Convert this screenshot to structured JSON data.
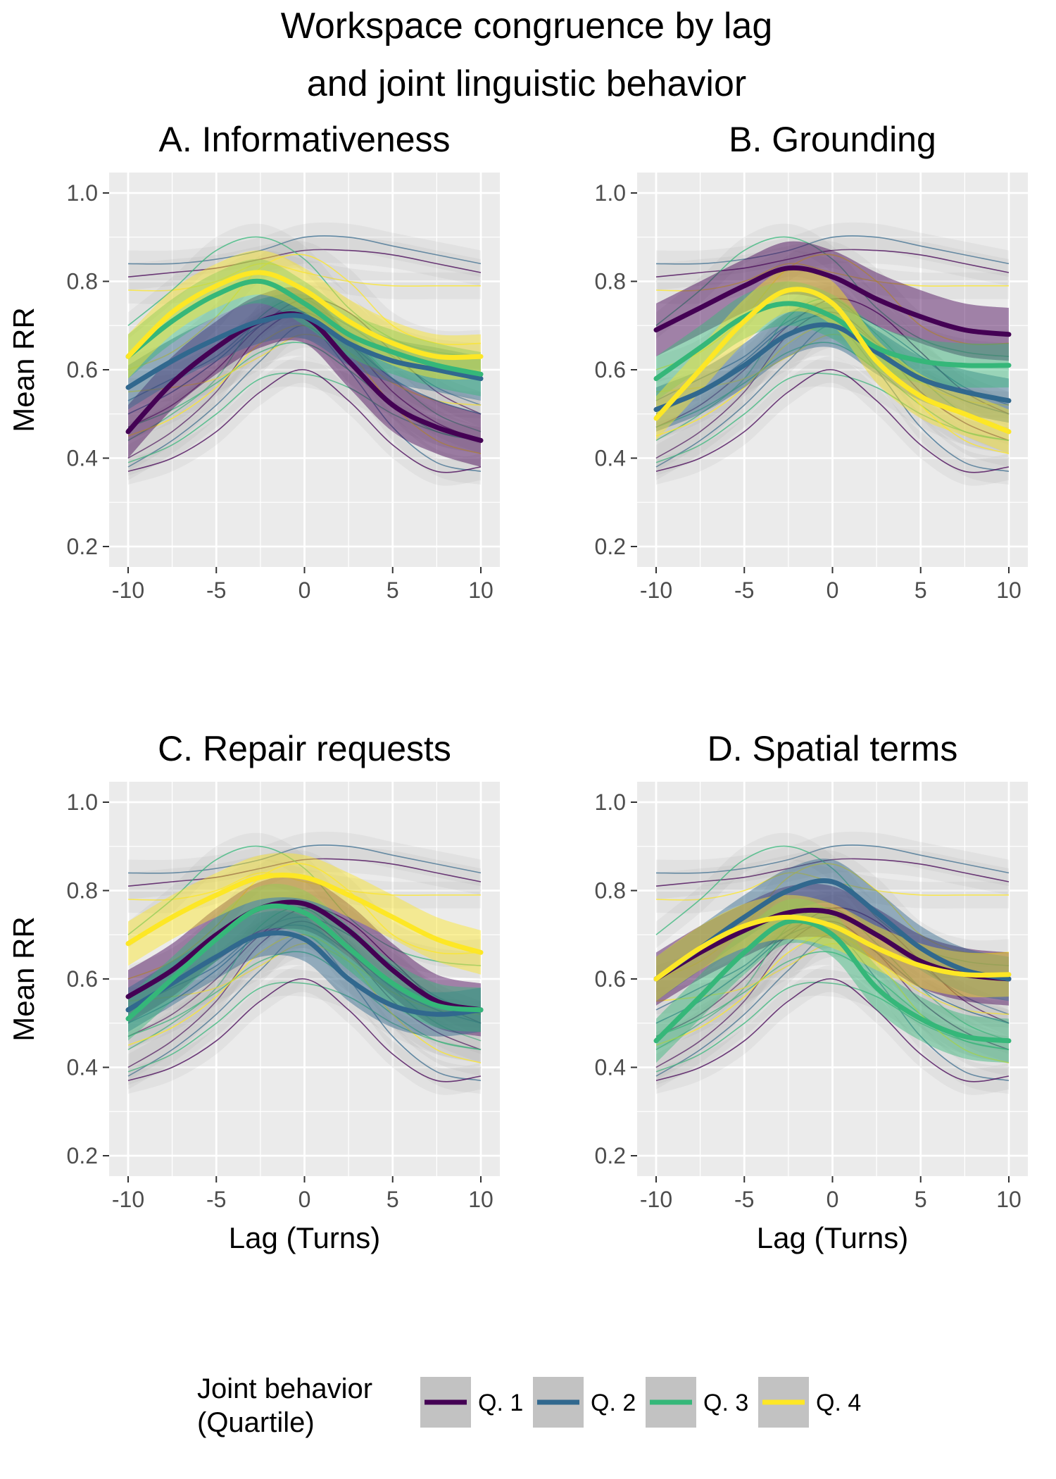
{
  "title_line1": "Workspace congruence by lag",
  "title_line2": "and joint linguistic behavior",
  "chart_data": {
    "type": "line",
    "x_range": [
      -10,
      10
    ],
    "y_range": [
      0.2,
      1.0
    ],
    "x_ticks": [
      -10,
      -5,
      0,
      5,
      10
    ],
    "y_ticks": [
      0.2,
      0.4,
      0.6,
      0.8,
      1.0
    ],
    "x_tick_labels": [
      "-10",
      "-5",
      "0",
      "5",
      "10"
    ],
    "y_tick_labels": [
      "0.2",
      "0.4",
      "0.6",
      "0.8",
      "1.0"
    ],
    "xlabel": "Lag (Turns)",
    "ylabel": "Mean RR",
    "x": [
      -10,
      -7.5,
      -5,
      -2.5,
      0,
      2.5,
      5,
      7.5,
      10
    ],
    "legend": {
      "title_line1": "Joint behavior",
      "title_line2": "(Quartile)",
      "position": "bottom",
      "entries": [
        {
          "label": "Q. 1",
          "color": "#440154"
        },
        {
          "label": "Q. 2",
          "color": "#31688e"
        },
        {
          "label": "Q. 3",
          "color": "#35b779"
        },
        {
          "label": "Q. 4",
          "color": "#fde725"
        }
      ]
    },
    "background_lines": [
      {
        "values": [
          0.84,
          0.84,
          0.85,
          0.87,
          0.9,
          0.9,
          0.88,
          0.86,
          0.84
        ],
        "color": "#31688e"
      },
      {
        "values": [
          0.81,
          0.82,
          0.83,
          0.85,
          0.87,
          0.87,
          0.86,
          0.84,
          0.82
        ],
        "color": "#440154"
      },
      {
        "values": [
          0.78,
          0.78,
          0.8,
          0.84,
          0.82,
          0.8,
          0.79,
          0.79,
          0.79
        ],
        "color": "#fde725"
      },
      {
        "values": [
          0.7,
          0.78,
          0.87,
          0.9,
          0.85,
          0.74,
          0.67,
          0.64,
          0.63
        ],
        "color": "#35b779"
      },
      {
        "values": [
          0.6,
          0.64,
          0.72,
          0.83,
          0.86,
          0.8,
          0.7,
          0.66,
          0.66
        ],
        "color": "#fde725"
      },
      {
        "values": [
          0.53,
          0.58,
          0.63,
          0.71,
          0.74,
          0.7,
          0.63,
          0.56,
          0.52
        ],
        "color": "#31688e"
      },
      {
        "values": [
          0.47,
          0.52,
          0.6,
          0.7,
          0.76,
          0.73,
          0.64,
          0.55,
          0.5
        ],
        "color": "#440154"
      },
      {
        "values": [
          0.44,
          0.5,
          0.58,
          0.72,
          0.76,
          0.68,
          0.58,
          0.5,
          0.46
        ],
        "color": "#35b779"
      },
      {
        "values": [
          0.4,
          0.46,
          0.55,
          0.68,
          0.73,
          0.66,
          0.55,
          0.48,
          0.44
        ],
        "color": "#440154"
      },
      {
        "values": [
          0.38,
          0.44,
          0.52,
          0.62,
          0.7,
          0.6,
          0.47,
          0.39,
          0.37
        ],
        "color": "#31688e"
      },
      {
        "values": [
          0.39,
          0.43,
          0.5,
          0.58,
          0.59,
          0.56,
          0.5,
          0.46,
          0.44
        ],
        "color": "#35b779"
      },
      {
        "values": [
          0.37,
          0.4,
          0.46,
          0.55,
          0.6,
          0.53,
          0.43,
          0.37,
          0.38
        ],
        "color": "#440154"
      },
      {
        "values": [
          0.55,
          0.56,
          0.58,
          0.63,
          0.68,
          0.64,
          0.57,
          0.53,
          0.52
        ],
        "color": "#fde725"
      },
      {
        "values": [
          0.47,
          0.51,
          0.57,
          0.64,
          0.66,
          0.6,
          0.52,
          0.46,
          0.44
        ],
        "color": "#35b779"
      },
      {
        "values": [
          0.5,
          0.55,
          0.62,
          0.7,
          0.72,
          0.66,
          0.58,
          0.53,
          0.5
        ],
        "color": "#31688e"
      },
      {
        "values": [
          0.45,
          0.49,
          0.56,
          0.66,
          0.7,
          0.64,
          0.52,
          0.44,
          0.41
        ],
        "color": "#fde725"
      }
    ],
    "panels": [
      {
        "title": "A. Informativeness",
        "series": [
          {
            "name": "Q. 1",
            "values": [
              0.46,
              0.57,
              0.65,
              0.71,
              0.72,
              0.62,
              0.52,
              0.47,
              0.44
            ],
            "band": 0.06
          },
          {
            "name": "Q. 2",
            "values": [
              0.56,
              0.62,
              0.67,
              0.71,
              0.72,
              0.66,
              0.62,
              0.6,
              0.58
            ],
            "band": 0.05
          },
          {
            "name": "Q. 3",
            "values": [
              0.63,
              0.71,
              0.77,
              0.8,
              0.75,
              0.68,
              0.64,
              0.61,
              0.59
            ],
            "band": 0.05
          },
          {
            "name": "Q. 4",
            "values": [
              0.63,
              0.73,
              0.79,
              0.82,
              0.78,
              0.71,
              0.66,
              0.63,
              0.63
            ],
            "band": 0.05
          }
        ]
      },
      {
        "title": "B. Grounding",
        "series": [
          {
            "name": "Q. 1",
            "values": [
              0.69,
              0.74,
              0.79,
              0.83,
              0.81,
              0.76,
              0.72,
              0.69,
              0.68
            ],
            "band": 0.06
          },
          {
            "name": "Q. 2",
            "values": [
              0.51,
              0.55,
              0.61,
              0.68,
              0.7,
              0.64,
              0.58,
              0.55,
              0.53
            ],
            "band": 0.05
          },
          {
            "name": "Q. 3",
            "values": [
              0.58,
              0.65,
              0.72,
              0.75,
              0.72,
              0.65,
              0.62,
              0.61,
              0.61
            ],
            "band": 0.05
          },
          {
            "name": "Q. 4",
            "values": [
              0.49,
              0.6,
              0.71,
              0.78,
              0.75,
              0.62,
              0.54,
              0.5,
              0.46
            ],
            "band": 0.05
          }
        ]
      },
      {
        "title": "C. Repair requests",
        "series": [
          {
            "name": "Q. 1",
            "values": [
              0.56,
              0.62,
              0.7,
              0.76,
              0.77,
              0.71,
              0.62,
              0.55,
              0.53
            ],
            "band": 0.06
          },
          {
            "name": "Q. 2",
            "values": [
              0.53,
              0.59,
              0.65,
              0.7,
              0.69,
              0.6,
              0.54,
              0.52,
              0.53
            ],
            "band": 0.05
          },
          {
            "name": "Q. 3",
            "values": [
              0.51,
              0.6,
              0.69,
              0.76,
              0.75,
              0.67,
              0.59,
              0.54,
              0.53
            ],
            "band": 0.05
          },
          {
            "name": "Q. 4",
            "values": [
              0.68,
              0.74,
              0.79,
              0.83,
              0.83,
              0.79,
              0.74,
              0.69,
              0.66
            ],
            "band": 0.05
          }
        ]
      },
      {
        "title": "D. Spatial terms",
        "series": [
          {
            "name": "Q. 1",
            "values": [
              0.6,
              0.66,
              0.71,
              0.75,
              0.75,
              0.7,
              0.64,
              0.61,
              0.6
            ],
            "band": 0.06
          },
          {
            "name": "Q. 2",
            "values": [
              0.6,
              0.67,
              0.74,
              0.8,
              0.82,
              0.75,
              0.67,
              0.62,
              0.6
            ],
            "band": 0.05
          },
          {
            "name": "Q. 3",
            "values": [
              0.46,
              0.56,
              0.66,
              0.73,
              0.7,
              0.58,
              0.51,
              0.47,
              0.46
            ],
            "band": 0.05
          },
          {
            "name": "Q. 4",
            "values": [
              0.6,
              0.67,
              0.72,
              0.74,
              0.72,
              0.67,
              0.63,
              0.61,
              0.61
            ],
            "band": 0.05
          }
        ]
      }
    ]
  }
}
